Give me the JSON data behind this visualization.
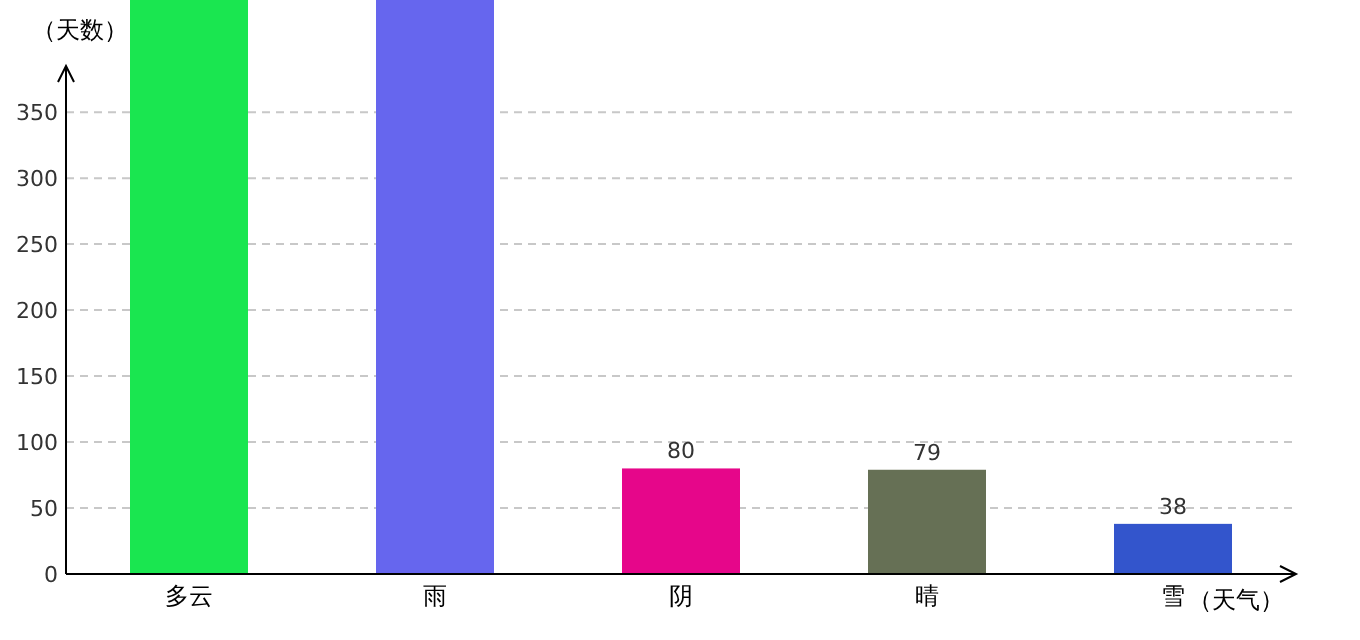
{
  "chart_data": {
    "type": "bar",
    "ylabel": "（天数）",
    "xlabel": "（天气）",
    "categories": [
      "多云",
      "雨",
      "阴",
      "晴",
      "雪"
    ],
    "values": [
      435,
      435,
      80,
      79,
      38
    ],
    "colors": [
      "#1ae650",
      "#6666ee",
      "#e6068a",
      "#667055",
      "#3355cc"
    ],
    "value_labels": [
      null,
      null,
      "80",
      "79",
      "38"
    ],
    "ylim": [
      0,
      435
    ],
    "yticks": [
      0,
      50,
      100,
      150,
      200,
      250,
      300,
      350
    ],
    "grid": "y"
  }
}
